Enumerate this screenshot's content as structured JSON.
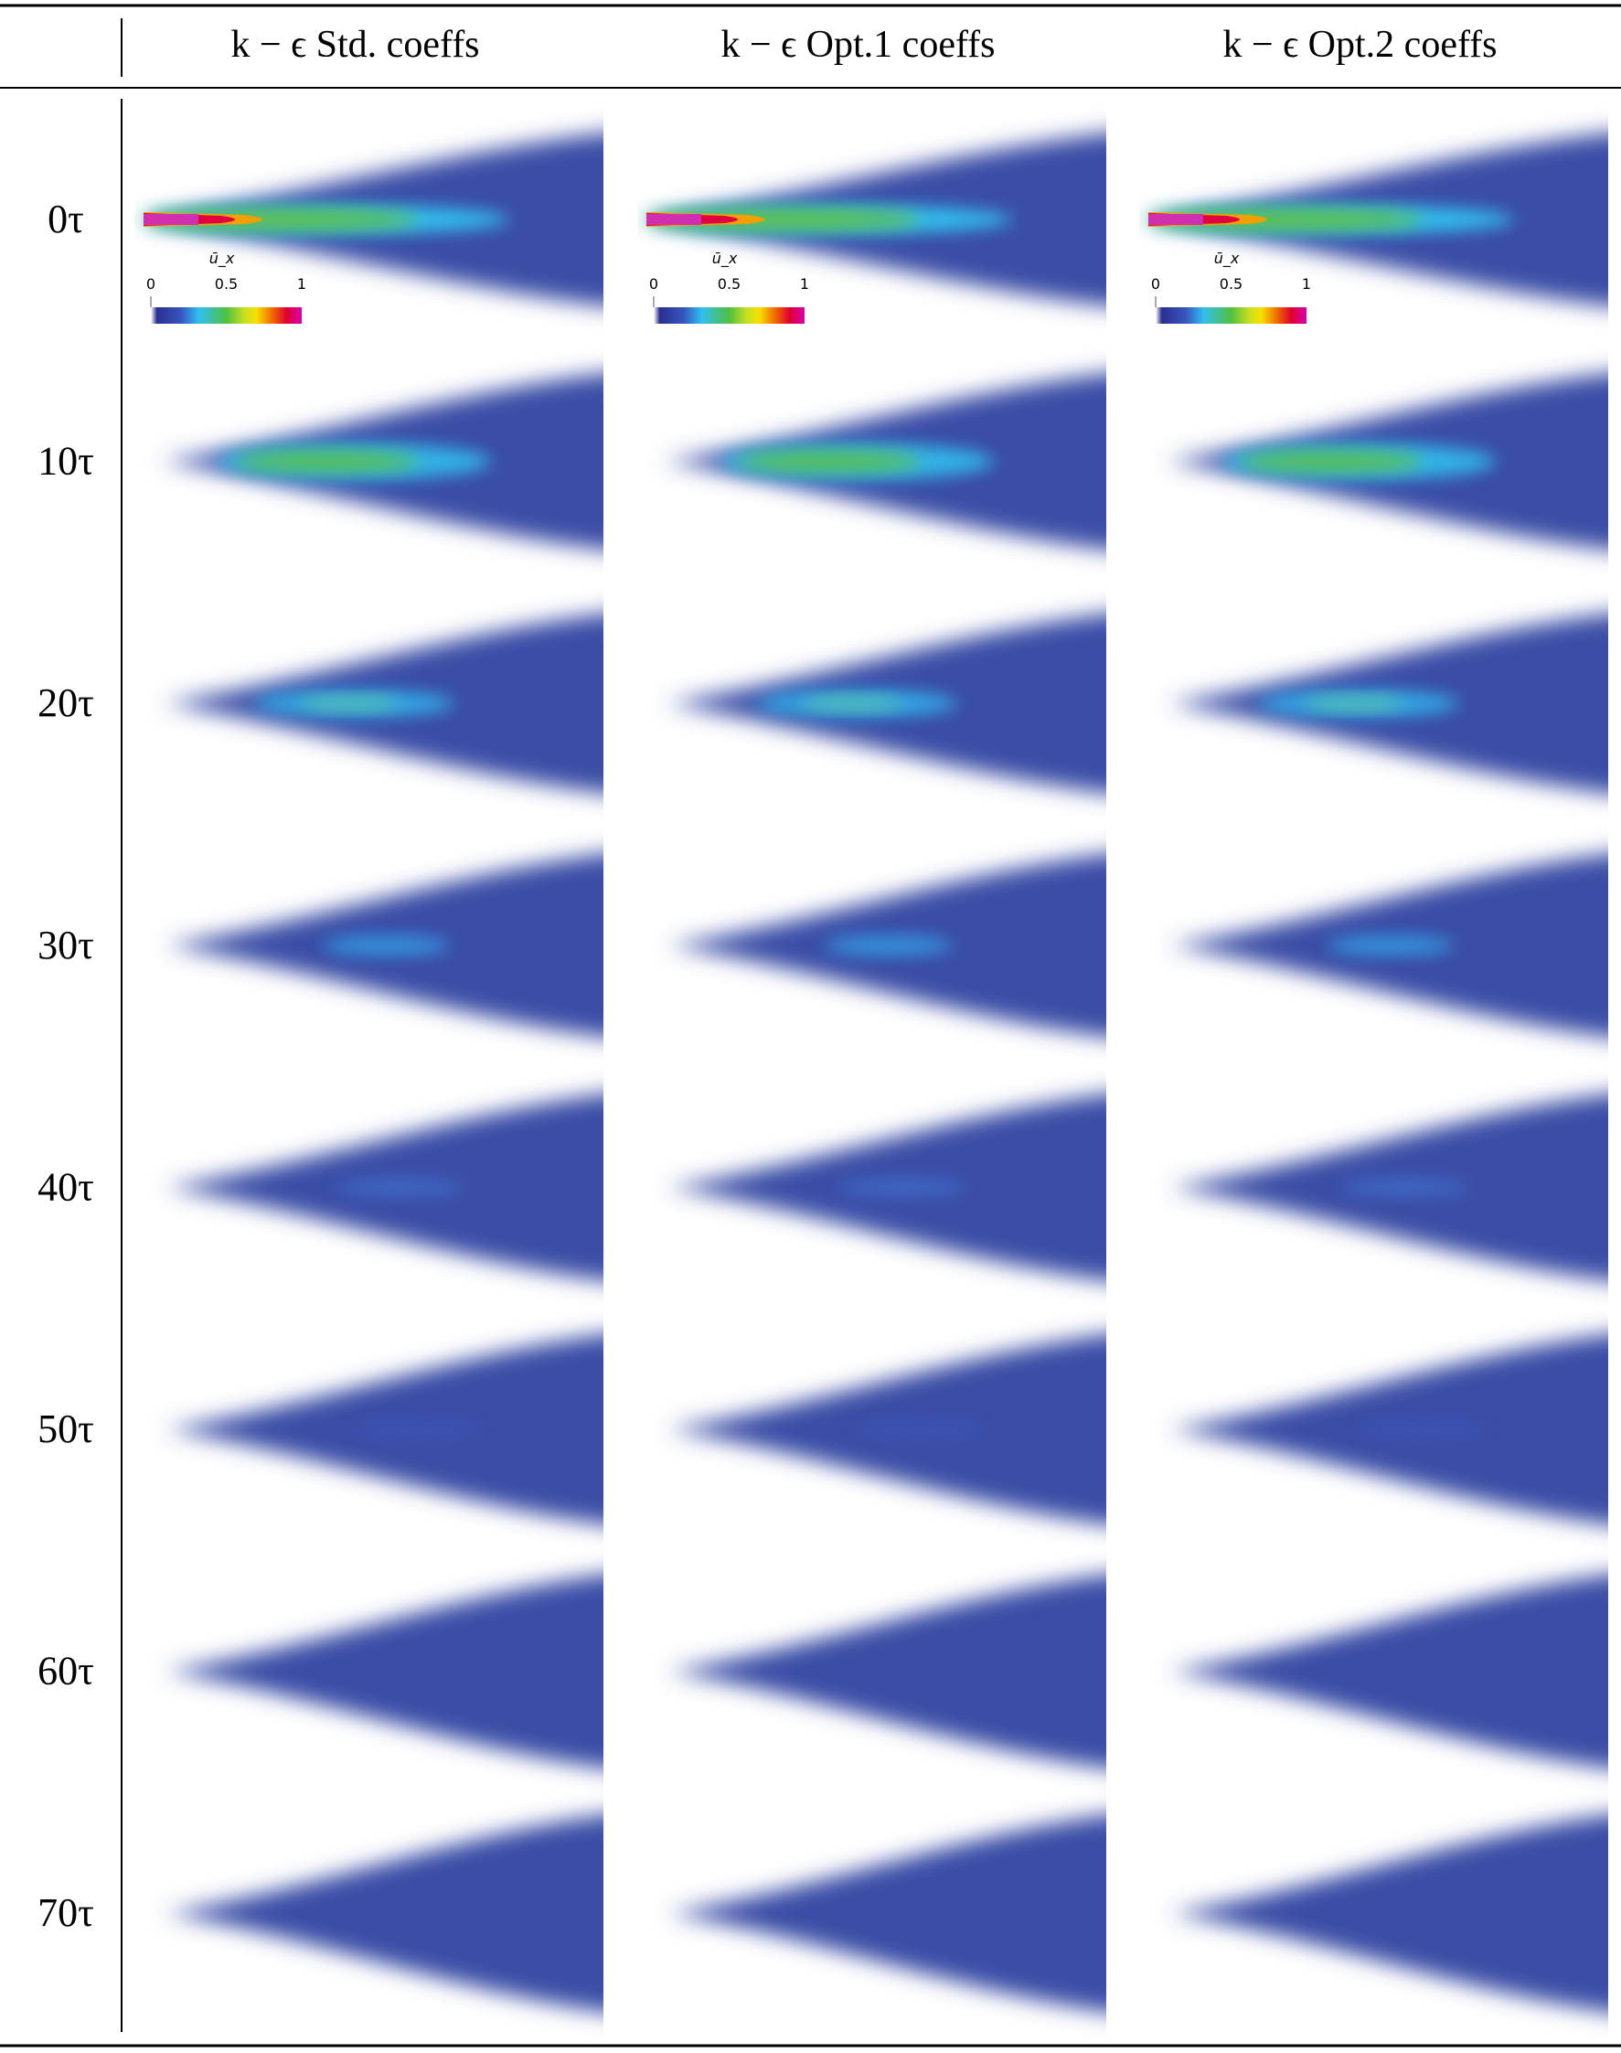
{
  "header": {
    "columns": [
      "k − ϵ Std. coeffs",
      "k − ϵ Opt.1 coeffs",
      "k − ϵ Opt.2 coeffs"
    ]
  },
  "rows": [
    {
      "label": "0τ"
    },
    {
      "label": "10τ"
    },
    {
      "label": "20τ"
    },
    {
      "label": "30τ"
    },
    {
      "label": "40τ"
    },
    {
      "label": "50τ"
    },
    {
      "label": "60τ"
    },
    {
      "label": "70τ"
    }
  ],
  "colorbar": {
    "title": "ū_x",
    "ticks": [
      "0",
      "0.5",
      "1"
    ]
  }
}
